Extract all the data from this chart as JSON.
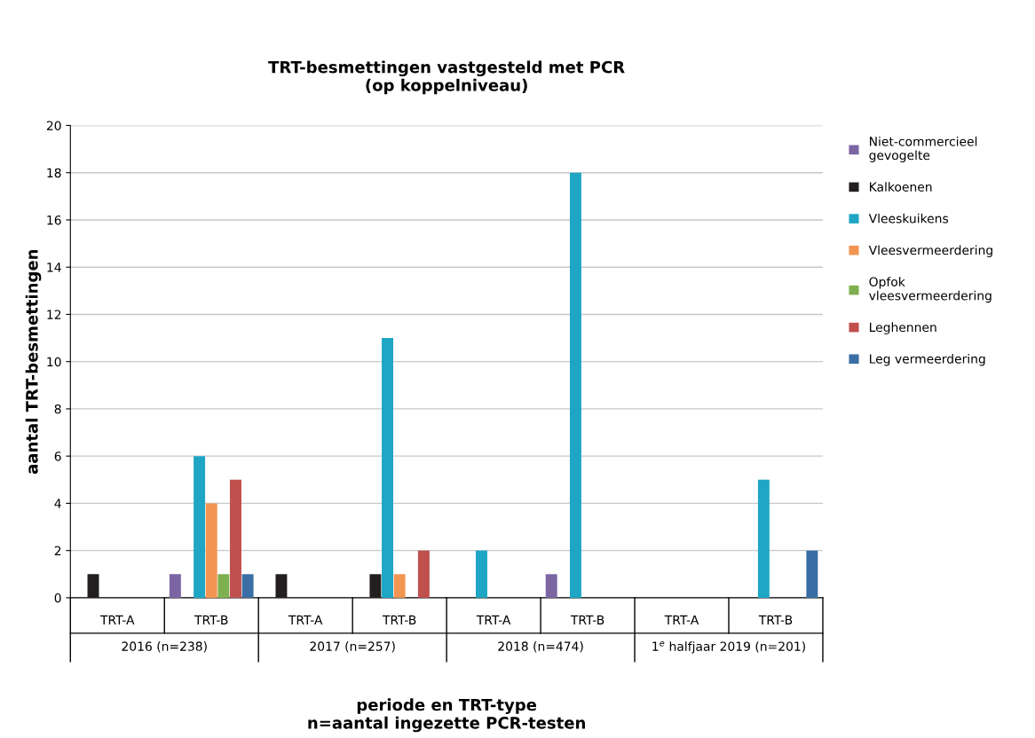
{
  "chart_data": {
    "type": "bar",
    "title": "TRT-besmettingen vastgesteld met PCR\n(op koppelniveau)",
    "xlabel": "periode en TRT-type\nn=aantal ingezette PCR-testen",
    "ylabel": "aantal TRT-besmettingen",
    "categories": [
      "TRT-A",
      "TRT-B",
      "TRT-A",
      "TRT-B",
      "TRT-A",
      "TRT-B",
      "TRT-A",
      "TRT-B"
    ],
    "annotations": [
      "2016 (n=238)",
      "2017 (n=257)",
      "2018 (n=474)",
      "1$^{e}$ halfjaar 2019 (n=201)"
    ],
    "series": [
      {
        "name": "Niet-commercieel gevogelte",
        "color": "#7b65a3",
        "values": [
          0,
          1,
          0,
          0,
          0,
          1,
          0,
          0
        ]
      },
      {
        "name": "Kalkoenen",
        "color": "#231f20",
        "values": [
          1,
          0,
          1,
          1,
          0,
          0,
          0,
          0
        ]
      },
      {
        "name": "Vleeskuikens",
        "color": "#1ea6c4",
        "values": [
          0,
          6,
          0,
          11,
          2,
          18,
          0,
          5
        ]
      },
      {
        "name": "Vleesvermeerdering",
        "color": "#f39552",
        "values": [
          0,
          4,
          0,
          1,
          0,
          0,
          0,
          0
        ]
      },
      {
        "name": "Opfok vleesvermeerdering",
        "color": "#7fb04f",
        "values": [
          0,
          1,
          0,
          0,
          0,
          0,
          0,
          0
        ]
      },
      {
        "name": "Leghennen",
        "color": "#c0504d",
        "values": [
          0,
          5,
          0,
          2,
          0,
          0,
          0,
          0
        ]
      },
      {
        "name": "Leg vermeerdering",
        "color": "#3a6ea5",
        "values": [
          0,
          1,
          0,
          0,
          0,
          0,
          0,
          2
        ]
      }
    ],
    "ylim": [
      0,
      20
    ],
    "yticks": [
      0,
      2,
      4,
      6,
      8,
      10,
      12,
      14,
      16,
      18,
      20
    ],
    "grid": "y",
    "legend": "top right"
  }
}
